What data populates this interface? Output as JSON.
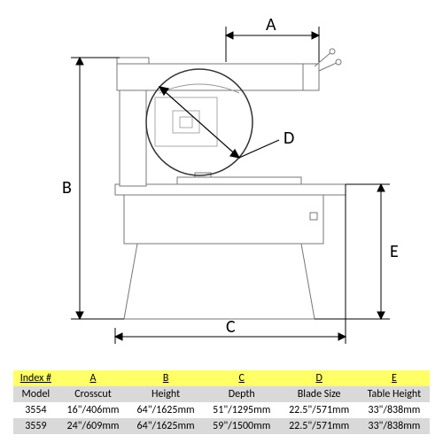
{
  "diagram": {
    "labels": {
      "A": "A",
      "B": "B",
      "C": "C",
      "D": "D",
      "E": "E"
    },
    "stroke": "#666666",
    "stroke_dark": "#000000",
    "fill": "#ffffff",
    "line_width": 1
  },
  "table": {
    "header_bg": "#ffff66",
    "row_alt_bg": "#d9d9d9",
    "row_bg": "#ffffff",
    "columns": [
      "Index #",
      "A",
      "B",
      "C",
      "D",
      "E"
    ],
    "subheader": [
      "Model",
      "Crosscut",
      "Height",
      "Depth",
      "Blade Size",
      "Table Height"
    ],
    "rows": [
      [
        "3554",
        "16\"/406mm",
        "64\"/1625mm",
        "51\"/1295mm",
        "22.5\"/571mm",
        "33\"/838mm"
      ],
      [
        "3559",
        "24\"/609mm",
        "64\"/1625mm",
        "59\"/1500mm",
        "22.5\"/571mm",
        "33\"/838mm"
      ]
    ],
    "font_size": 12
  }
}
